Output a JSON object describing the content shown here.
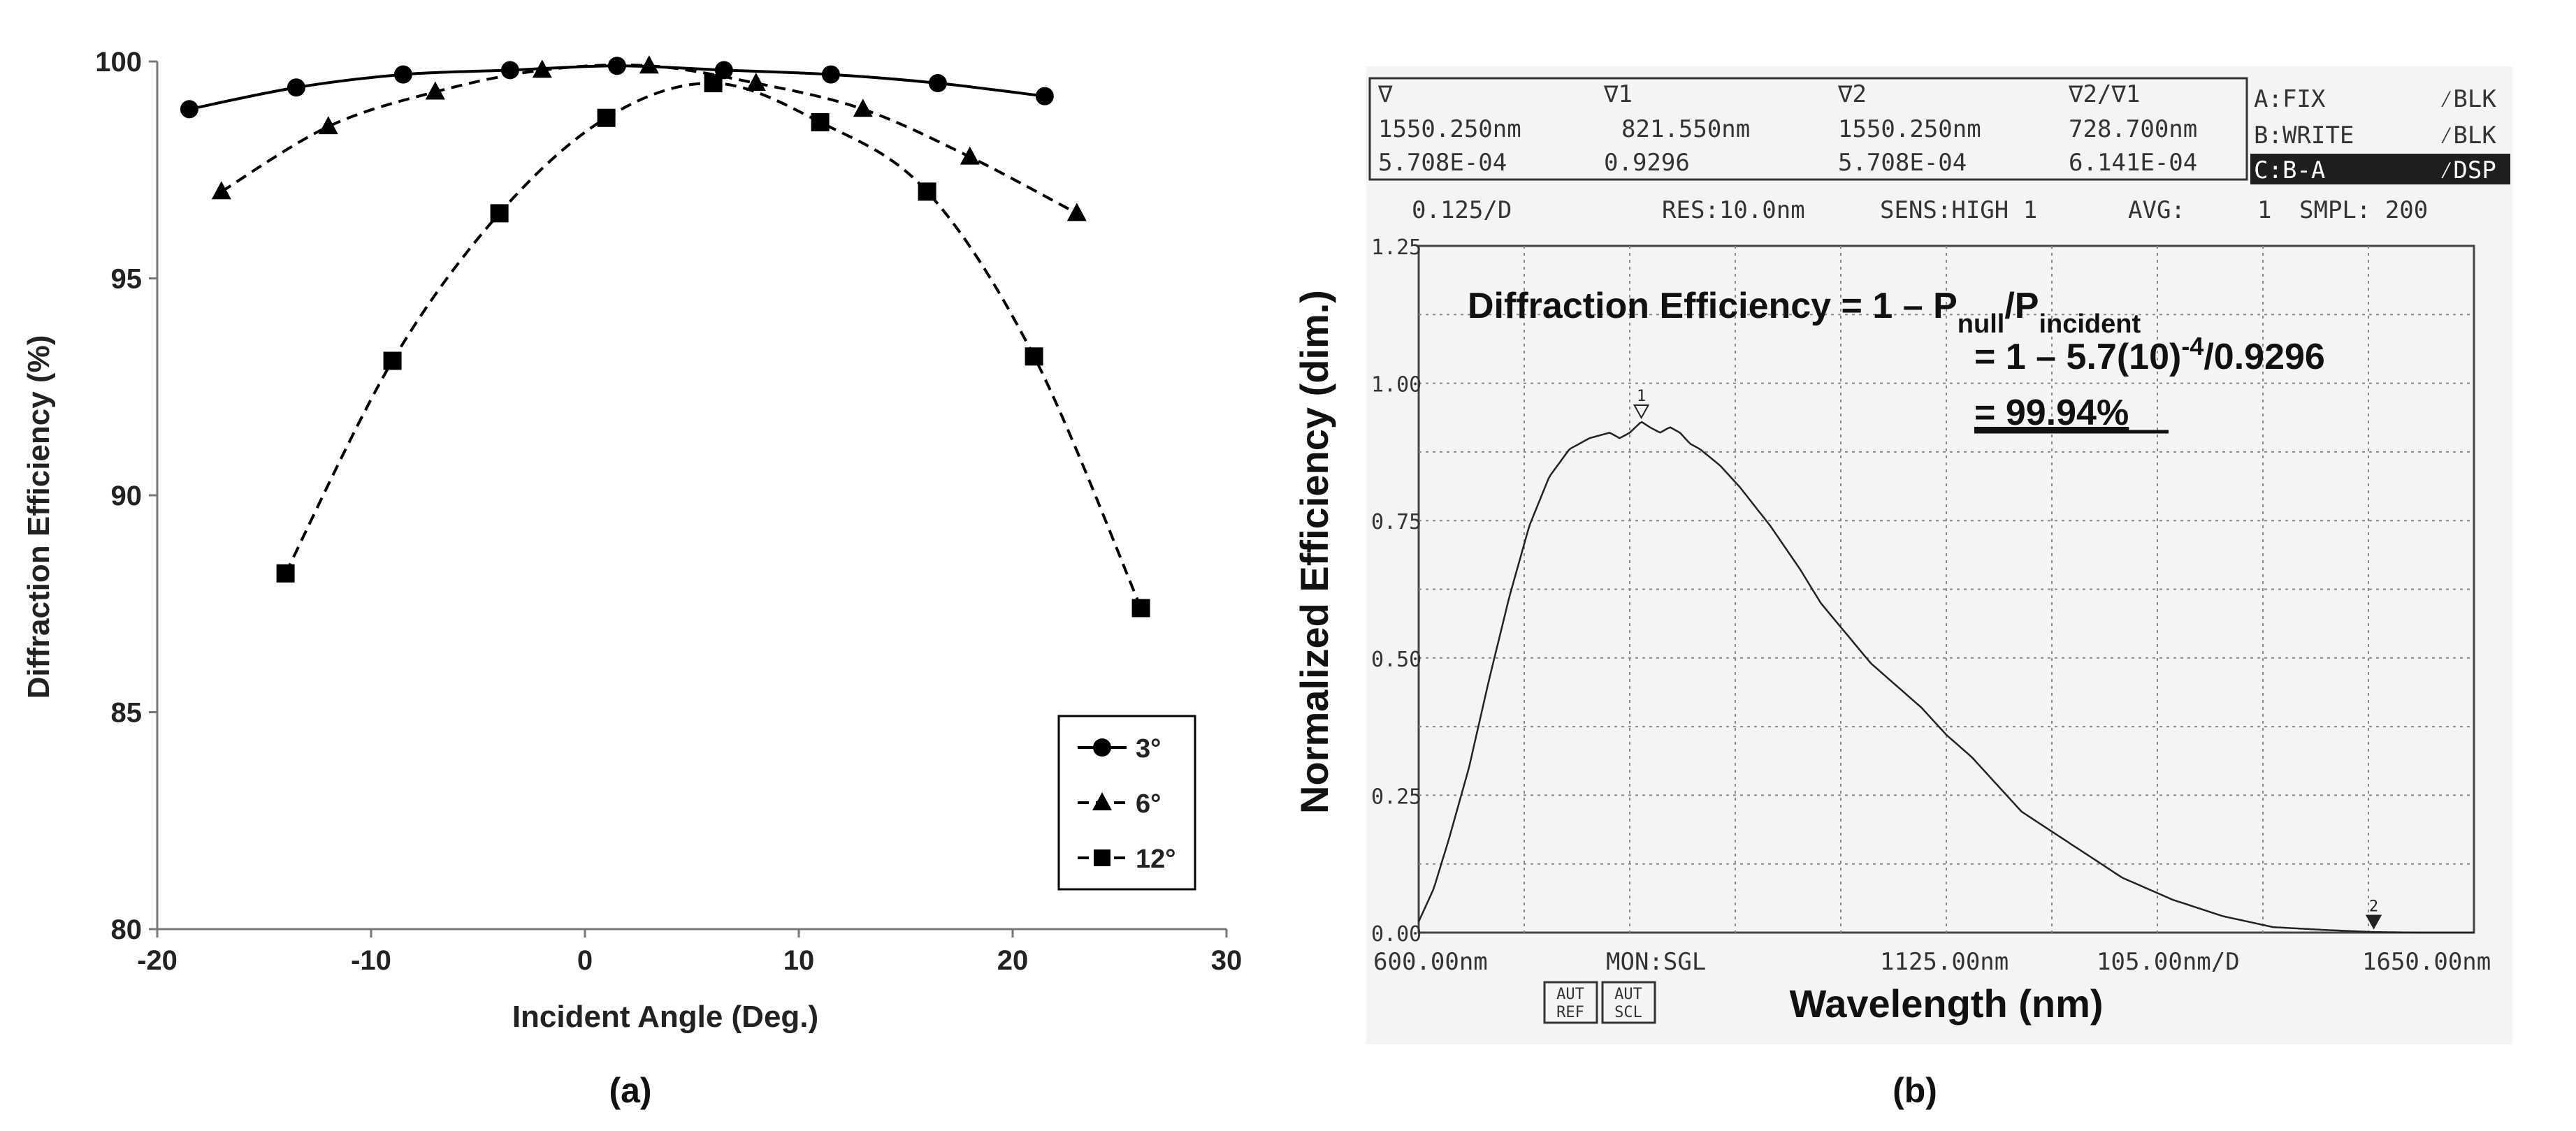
{
  "panel_a": {
    "caption": "(a)",
    "chart_data": {
      "type": "line",
      "xlabel": "Incident Angle (Deg.)",
      "ylabel": "Diffraction Efficiency (%)",
      "xlim": [
        -20,
        30
      ],
      "ylim": [
        80,
        100
      ],
      "xticks": [
        -20,
        -10,
        0,
        10,
        20,
        30
      ],
      "yticks": [
        80,
        85,
        90,
        95,
        100
      ],
      "xtick_labels": [
        "-20",
        "-10",
        "0",
        "10",
        "20",
        "30"
      ],
      "ytick_labels": [
        "80",
        "85",
        "90",
        "95",
        "100"
      ],
      "grid": false,
      "legend_position": "bottom-right",
      "series": [
        {
          "name": "3°",
          "marker": "circle",
          "line": "solid",
          "x": [
            -18.5,
            -13.5,
            -8.5,
            -3.5,
            1.5,
            6.5,
            11.5,
            16.5,
            21.5
          ],
          "y": [
            98.9,
            99.4,
            99.7,
            99.8,
            99.9,
            99.8,
            99.7,
            99.5,
            99.2
          ]
        },
        {
          "name": "6°",
          "marker": "triangle",
          "line": "dashed",
          "x": [
            -17,
            -12,
            -7,
            -2,
            3,
            8,
            13,
            18,
            23
          ],
          "y": [
            97.0,
            98.5,
            99.3,
            99.8,
            99.9,
            99.5,
            98.9,
            97.8,
            96.5
          ]
        },
        {
          "name": "12°",
          "marker": "square",
          "line": "dashed",
          "x": [
            -14,
            -9,
            -4,
            1,
            6,
            11,
            16,
            21,
            26
          ],
          "y": [
            88.2,
            93.1,
            96.5,
            98.7,
            99.5,
            98.6,
            97.0,
            93.2,
            87.4
          ]
        }
      ]
    }
  },
  "panel_b": {
    "caption": "(b)",
    "header": {
      "col1": [
        "∇",
        "1550.250nm",
        "5.708E-04"
      ],
      "col2": [
        "∇1",
        "821.550nm",
        "0.9296"
      ],
      "col3": [
        "∇2",
        "1550.250nm",
        "5.708E-04"
      ],
      "col4": [
        "∇2/∇1",
        "728.700nm",
        "6.141E-04"
      ],
      "traces": [
        {
          "name": "A:FIX",
          "mode": "⁄BLK"
        },
        {
          "name": "B:WRITE",
          "mode": "⁄BLK"
        },
        {
          "name": "C:B-A",
          "mode": "⁄DSP"
        }
      ]
    },
    "settings": {
      "scale": "0.125/D",
      "res": "RES:10.0nm",
      "sens": "SENS:HIGH 1",
      "avg_label": "AVG:",
      "avg_value": "1",
      "smpl": "SMPL: 200"
    },
    "bottom": {
      "start": "600.00nm",
      "mon": "MON:SGL",
      "center": "1125.00nm",
      "span": "105.00nm/D",
      "stop": "1650.00nm",
      "btn1_line1": "AUT",
      "btn1_line2": "REF",
      "btn2_line1": "AUT",
      "btn2_line2": "SCL"
    },
    "marker_labels": {
      "m1": "1",
      "m2": "2"
    },
    "annotation": {
      "line1_prefix": "Diffraction Efficiency = 1 – P",
      "line1_sub1": "null",
      "line1_mid": "/P",
      "line1_sub2": "incident",
      "line2_prefix": "= 1 – 5.7(10)",
      "line2_sup": "-4",
      "line2_suffix": "/0.9296",
      "line3": "= 99.94%"
    },
    "chart_data": {
      "type": "line",
      "title": "",
      "xlabel": "Wavelength (nm)",
      "ylabel": "Normalized Efficiency (dim.)",
      "xlim": [
        600,
        1650
      ],
      "ylim": [
        0,
        1.25
      ],
      "yticks": [
        0,
        0.25,
        0.5,
        0.75,
        1.0,
        1.25
      ],
      "ytick_labels": [
        "0.00",
        "0.25",
        "0.50",
        "0.75",
        "1.00",
        "1.25"
      ],
      "grid": true,
      "markers": [
        {
          "name": "1",
          "x": 821.55,
          "y": 0.9296
        },
        {
          "name": "2",
          "x": 1550.25,
          "y": 0.00057
        }
      ],
      "series": [
        {
          "name": "C:B-A",
          "x": [
            600,
            615,
            630,
            650,
            670,
            690,
            710,
            730,
            750,
            770,
            790,
            800,
            810,
            821.55,
            830,
            840,
            850,
            860,
            870,
            880,
            900,
            920,
            950,
            980,
            1000,
            1050,
            1100,
            1125,
            1150,
            1200,
            1250,
            1300,
            1350,
            1400,
            1450,
            1500,
            1550,
            1600,
            1650
          ],
          "y": [
            0.02,
            0.08,
            0.17,
            0.3,
            0.46,
            0.61,
            0.74,
            0.83,
            0.88,
            0.9,
            0.91,
            0.9,
            0.91,
            0.93,
            0.92,
            0.91,
            0.92,
            0.91,
            0.89,
            0.88,
            0.85,
            0.81,
            0.74,
            0.66,
            0.6,
            0.49,
            0.41,
            0.36,
            0.32,
            0.22,
            0.16,
            0.1,
            0.06,
            0.03,
            0.01,
            0.005,
            0.001,
            0.0,
            0.0
          ]
        }
      ]
    }
  }
}
